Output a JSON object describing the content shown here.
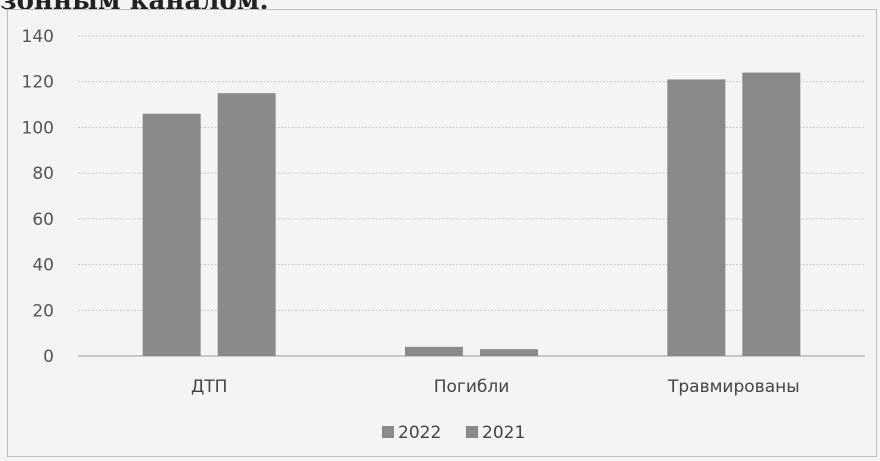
{
  "page": {
    "top_fragment": "зонным каналом."
  },
  "chart_data": {
    "type": "bar",
    "title": "",
    "xlabel": "",
    "ylabel": "",
    "categories": [
      "ДТП",
      "Погибли",
      "Травмированы"
    ],
    "series": [
      {
        "name": "2022",
        "values": [
          106,
          4,
          121
        ],
        "color": "#8a8a8a"
      },
      {
        "name": "2021",
        "values": [
          115,
          3,
          124
        ],
        "color": "#8a8a8a"
      }
    ],
    "ylim": [
      0,
      140
    ],
    "yticks": [
      0,
      20,
      40,
      60,
      80,
      100,
      120,
      140
    ],
    "grid": true,
    "legend_position": "bottom"
  }
}
